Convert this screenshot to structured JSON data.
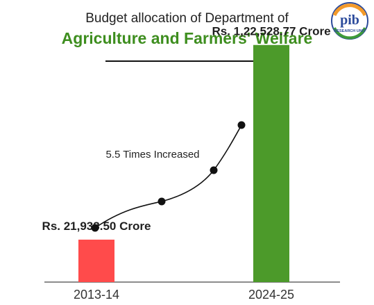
{
  "header": {
    "subtitle": "Budget allocation of Department of",
    "title": "Agriculture and Farmers' Welfare"
  },
  "logo": {
    "icon": "pib-research-unit-logo",
    "text": "pib",
    "caption": "RESEARCH UNIT"
  },
  "colors": {
    "accent_green": "#3e8e1f",
    "bar_2013": "#ff4b4b",
    "bar_2024": "#4c9a2a"
  },
  "chart_data": {
    "type": "bar",
    "categories": [
      "2013-14",
      "2024-25"
    ],
    "values": [
      21933.5,
      122528.77
    ],
    "data_labels": [
      "Rs. 21,933.50 Crore",
      "Rs. 1,22,528.77 Crore"
    ],
    "ylim": [
      0,
      135000
    ],
    "grid": false,
    "annotation": "5.5 Times Increased"
  }
}
